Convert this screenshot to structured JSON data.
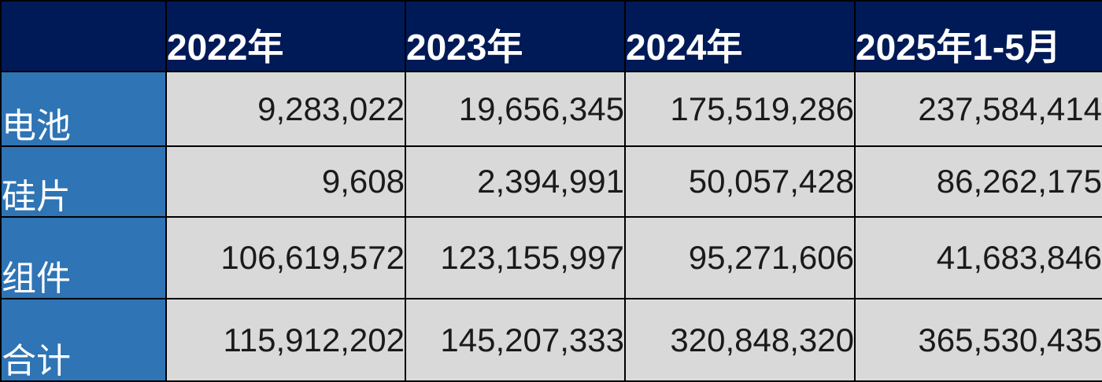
{
  "chart_data": {
    "type": "table",
    "columns": [
      "2022年",
      "2023年",
      "2024年",
      "2025年1-5月"
    ],
    "rows": [
      {
        "label": "电池",
        "values": [
          "9,283,022",
          "19,656,345",
          "175,519,286",
          "237,584,414"
        ]
      },
      {
        "label": "硅片",
        "values": [
          "9,608",
          "2,394,991",
          "50,057,428",
          "86,262,175"
        ]
      },
      {
        "label": "组件",
        "values": [
          "106,619,572",
          "123,155,997",
          "95,271,606",
          "41,683,846"
        ]
      },
      {
        "label": "合计",
        "values": [
          "115,912,202",
          "145,207,333",
          "320,848,320",
          "365,530,435"
        ]
      }
    ],
    "colors": {
      "header_bg": "#001a57",
      "row_label_bg": "#2f74b5",
      "cell_bg": "#d9d9d9"
    }
  }
}
